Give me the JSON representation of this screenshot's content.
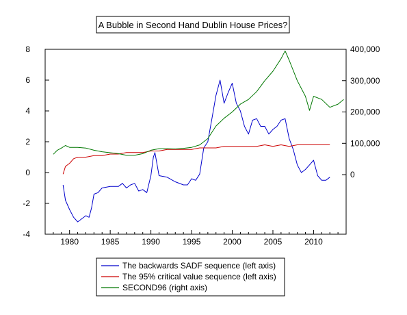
{
  "chart_data": {
    "type": "line",
    "title": "A Bubble in Second Hand Dublin House Prices?",
    "xlabel": "",
    "ylabel_left": "",
    "ylabel_right": "",
    "xlim": [
      1977.0,
      2014.0
    ],
    "ylim_left": [
      -4,
      8
    ],
    "left_ticks": [
      -4,
      -2,
      0,
      2,
      4,
      6,
      8
    ],
    "left_tick_labels": [
      "-4",
      "-2",
      "0",
      "2",
      "4",
      "6",
      "8"
    ],
    "ylim_right": [
      -190000,
      400000
    ],
    "right_ticks": [
      0,
      100000,
      200000,
      300000,
      400000
    ],
    "right_tick_labels": [
      "0",
      "100,000",
      "200,000",
      "300,000",
      "400,000"
    ],
    "x_ticks": [
      1980,
      1985,
      1990,
      1995,
      2000,
      2005,
      2010
    ],
    "x_tick_labels": [
      "1980",
      "1985",
      "1990",
      "1995",
      "2000",
      "2005",
      "2010"
    ],
    "grid": false,
    "legend_position": "bottom",
    "series": [
      {
        "name": "The backwards SADF sequence (left axis)",
        "axis": "left",
        "color": "#0000cc",
        "points": [
          [
            1979.2,
            -0.8
          ],
          [
            1979.5,
            -1.8
          ],
          [
            1980.0,
            -2.4
          ],
          [
            1980.5,
            -2.9
          ],
          [
            1981.0,
            -3.2
          ],
          [
            1981.5,
            -3.0
          ],
          [
            1982.0,
            -2.8
          ],
          [
            1982.4,
            -2.9
          ],
          [
            1982.7,
            -2.3
          ],
          [
            1983.0,
            -1.4
          ],
          [
            1983.5,
            -1.3
          ],
          [
            1984.0,
            -1.0
          ],
          [
            1985.0,
            -0.9
          ],
          [
            1986.0,
            -0.9
          ],
          [
            1986.5,
            -0.7
          ],
          [
            1987.0,
            -1.0
          ],
          [
            1987.5,
            -0.8
          ],
          [
            1988.0,
            -0.7
          ],
          [
            1988.5,
            -1.2
          ],
          [
            1989.0,
            -1.1
          ],
          [
            1989.5,
            -1.3
          ],
          [
            1990.0,
            -0.2
          ],
          [
            1990.3,
            1.0
          ],
          [
            1990.5,
            1.3
          ],
          [
            1990.8,
            0.4
          ],
          [
            1991.0,
            -0.2
          ],
          [
            1992.0,
            -0.3
          ],
          [
            1993.0,
            -0.6
          ],
          [
            1994.0,
            -0.8
          ],
          [
            1994.5,
            -0.8
          ],
          [
            1995.0,
            -0.4
          ],
          [
            1995.5,
            -0.5
          ],
          [
            1996.0,
            -0.1
          ],
          [
            1996.5,
            1.6
          ],
          [
            1997.0,
            2.0
          ],
          [
            1997.5,
            3.5
          ],
          [
            1998.0,
            5.0
          ],
          [
            1998.5,
            6.0
          ],
          [
            1999.0,
            4.5
          ],
          [
            1999.5,
            5.2
          ],
          [
            2000.0,
            5.8
          ],
          [
            2000.5,
            4.5
          ],
          [
            2001.0,
            4.0
          ],
          [
            2001.5,
            3.0
          ],
          [
            2002.0,
            2.5
          ],
          [
            2002.5,
            3.4
          ],
          [
            2003.0,
            3.5
          ],
          [
            2003.5,
            3.0
          ],
          [
            2004.0,
            3.0
          ],
          [
            2004.5,
            2.5
          ],
          [
            2005.0,
            2.8
          ],
          [
            2005.5,
            3.0
          ],
          [
            2006.0,
            3.4
          ],
          [
            2006.5,
            3.5
          ],
          [
            2007.0,
            2.2
          ],
          [
            2007.5,
            1.5
          ],
          [
            2008.0,
            0.5
          ],
          [
            2008.5,
            0.0
          ],
          [
            2009.0,
            0.2
          ],
          [
            2009.5,
            0.5
          ],
          [
            2010.0,
            0.8
          ],
          [
            2010.5,
            -0.2
          ],
          [
            2011.0,
            -0.5
          ],
          [
            2011.5,
            -0.5
          ],
          [
            2012.0,
            -0.3
          ]
        ]
      },
      {
        "name": "The 95% critical value sequence (left axis)",
        "axis": "left",
        "color": "#cc0000",
        "points": [
          [
            1979.2,
            -0.1
          ],
          [
            1979.5,
            0.4
          ],
          [
            1980.0,
            0.6
          ],
          [
            1980.5,
            0.9
          ],
          [
            1981.0,
            1.0
          ],
          [
            1982.0,
            1.0
          ],
          [
            1983.0,
            1.1
          ],
          [
            1984.0,
            1.1
          ],
          [
            1985.0,
            1.2
          ],
          [
            1986.0,
            1.2
          ],
          [
            1987.0,
            1.3
          ],
          [
            1988.0,
            1.3
          ],
          [
            1989.0,
            1.3
          ],
          [
            1990.0,
            1.4
          ],
          [
            1991.0,
            1.4
          ],
          [
            1992.0,
            1.5
          ],
          [
            1993.0,
            1.5
          ],
          [
            1994.0,
            1.5
          ],
          [
            1995.0,
            1.5
          ],
          [
            1996.0,
            1.6
          ],
          [
            1997.0,
            1.6
          ],
          [
            1998.0,
            1.6
          ],
          [
            1999.0,
            1.7
          ],
          [
            2000.0,
            1.7
          ],
          [
            2001.0,
            1.7
          ],
          [
            2002.0,
            1.7
          ],
          [
            2003.0,
            1.7
          ],
          [
            2004.0,
            1.8
          ],
          [
            2005.0,
            1.7
          ],
          [
            2006.0,
            1.8
          ],
          [
            2007.0,
            1.7
          ],
          [
            2008.0,
            1.8
          ],
          [
            2009.0,
            1.8
          ],
          [
            2010.0,
            1.8
          ],
          [
            2011.0,
            1.8
          ],
          [
            2012.0,
            1.8
          ]
        ]
      },
      {
        "name": "SECOND96 (right axis)",
        "axis": "right",
        "color": "#007700",
        "points": [
          [
            1978.0,
            65000
          ],
          [
            1978.5,
            78000
          ],
          [
            1979.0,
            85000
          ],
          [
            1979.5,
            93000
          ],
          [
            1980.0,
            87000
          ],
          [
            1981.0,
            87000
          ],
          [
            1982.0,
            85000
          ],
          [
            1983.0,
            78000
          ],
          [
            1984.0,
            73000
          ],
          [
            1985.0,
            70000
          ],
          [
            1986.0,
            67000
          ],
          [
            1987.0,
            62000
          ],
          [
            1988.0,
            62000
          ],
          [
            1989.0,
            67000
          ],
          [
            1990.0,
            78000
          ],
          [
            1991.0,
            83000
          ],
          [
            1992.0,
            83000
          ],
          [
            1993.0,
            82000
          ],
          [
            1994.0,
            84000
          ],
          [
            1995.0,
            87000
          ],
          [
            1996.0,
            95000
          ],
          [
            1997.0,
            115000
          ],
          [
            1998.0,
            155000
          ],
          [
            1999.0,
            180000
          ],
          [
            2000.0,
            200000
          ],
          [
            2001.0,
            225000
          ],
          [
            2002.0,
            240000
          ],
          [
            2003.0,
            265000
          ],
          [
            2004.0,
            300000
          ],
          [
            2005.0,
            330000
          ],
          [
            2006.0,
            370000
          ],
          [
            2006.5,
            395000
          ],
          [
            2007.0,
            365000
          ],
          [
            2008.0,
            300000
          ],
          [
            2009.0,
            250000
          ],
          [
            2009.5,
            205000
          ],
          [
            2010.0,
            250000
          ],
          [
            2011.0,
            240000
          ],
          [
            2012.0,
            215000
          ],
          [
            2013.0,
            225000
          ],
          [
            2013.7,
            240000
          ]
        ]
      }
    ]
  }
}
